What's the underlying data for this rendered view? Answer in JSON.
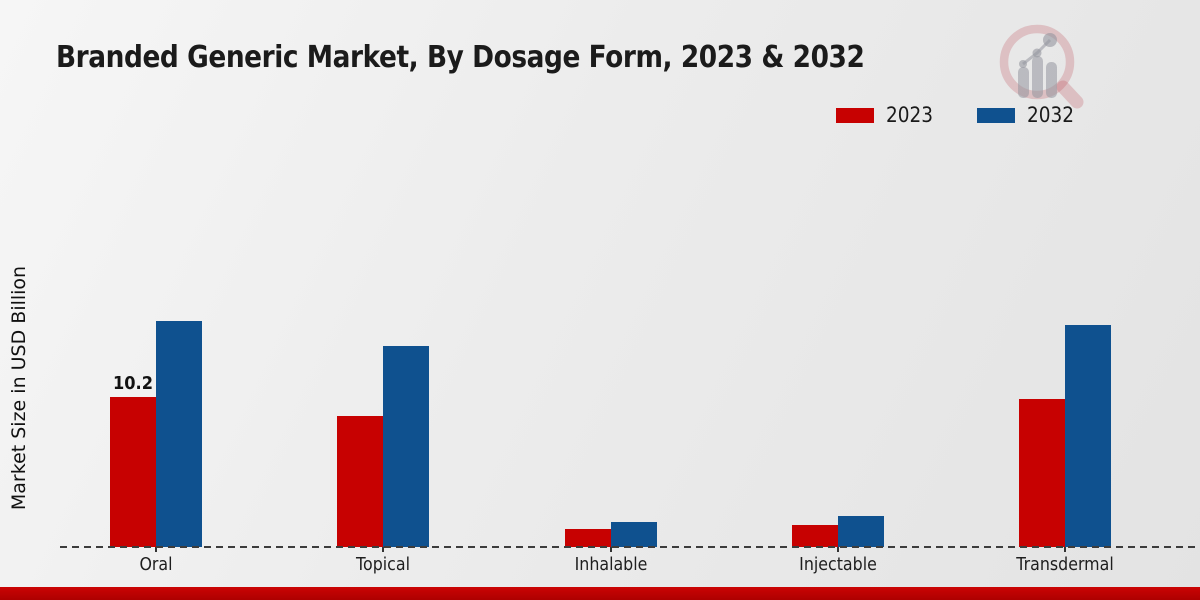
{
  "title": "Branded Generic Market, By Dosage Form, 2023 & 2032",
  "y_axis_label": "Market Size in USD Billion",
  "legend": [
    {
      "label": "2023",
      "color": "#c70101"
    },
    {
      "label": "2032",
      "color": "#0f518f"
    }
  ],
  "watermark_icon": "magnifier-bar-chart-logo",
  "colors": {
    "series_2023": "#c70101",
    "series_2032": "#0f518f",
    "baseline": "#3c3c3c",
    "bottom_strip": "#c00000",
    "background": "#ececec"
  },
  "chart_data": {
    "type": "bar",
    "title": "Branded Generic Market, By Dosage Form, 2023 & 2032",
    "xlabel": "",
    "ylabel": "Market Size in USD Billion",
    "categories": [
      "Oral",
      "Topical",
      "Inhalable",
      "Injectable",
      "Transdermal"
    ],
    "series": [
      {
        "name": "2023",
        "color": "#c70101",
        "values": [
          10.2,
          8.9,
          1.2,
          1.5,
          10.1
        ]
      },
      {
        "name": "2032",
        "color": "#0f518f",
        "values": [
          15.4,
          13.7,
          1.7,
          2.1,
          15.1
        ]
      }
    ],
    "data_labels": [
      {
        "category": "Oral",
        "series": "2023",
        "text": "10.2"
      }
    ],
    "ylim": [
      0,
      17
    ],
    "grid": false,
    "y_ticks_visible": false,
    "legend_position": "top-right",
    "baseline_style": "dashed"
  }
}
